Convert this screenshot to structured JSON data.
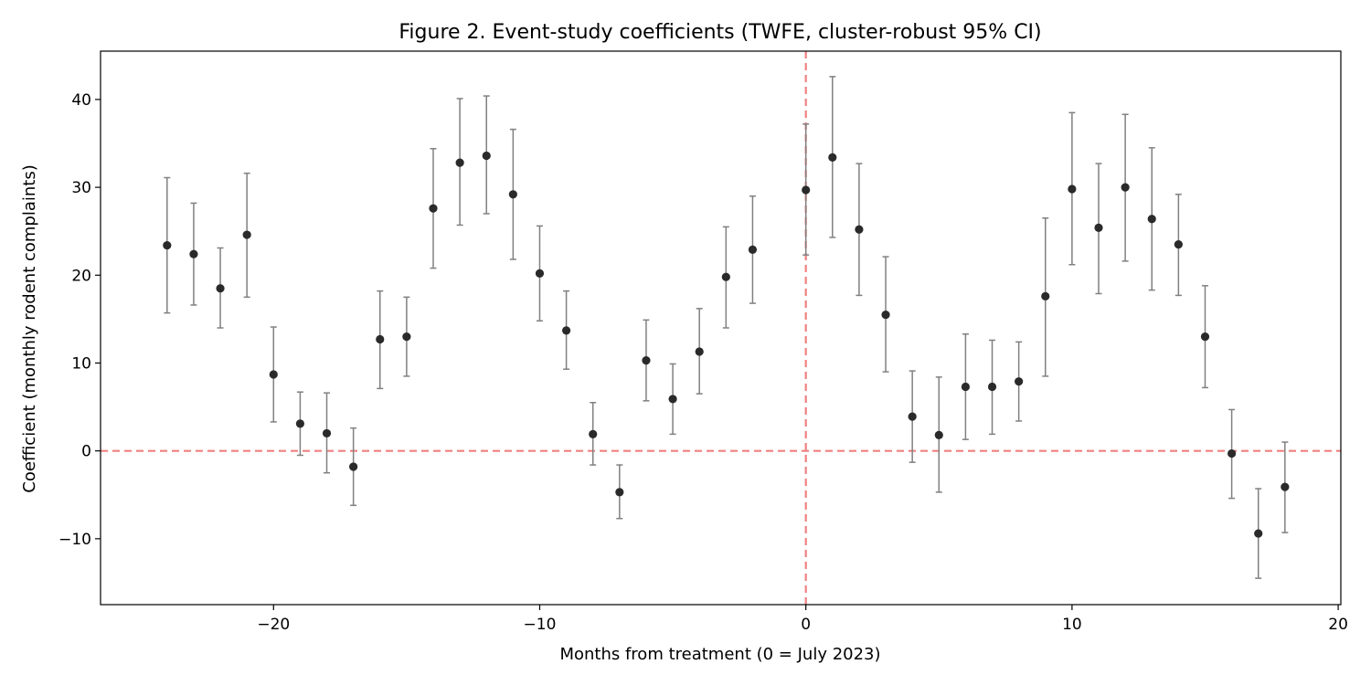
{
  "chart_data": {
    "type": "scatter",
    "title": "Figure 2. Event-study coefficients (TWFE, cluster-robust 95% CI)",
    "xlabel": "Months from treatment (0 = July 2023)",
    "ylabel": "Coefficient (monthly rodent complaints)",
    "xlim": [
      -26.5,
      20.1
    ],
    "ylim": [
      -17.5,
      45.5
    ],
    "xticks": [
      -20,
      -10,
      0,
      10,
      20
    ],
    "xtick_labels": [
      "−20",
      "−10",
      "0",
      "10",
      "20"
    ],
    "yticks": [
      -10,
      0,
      10,
      20,
      30,
      40
    ],
    "ytick_labels": [
      "−10",
      "0",
      "10",
      "20",
      "30",
      "40"
    ],
    "grid": false,
    "reference_lines": [
      {
        "axis": "x",
        "value": 0,
        "style": "dashed",
        "color": "#f08080"
      },
      {
        "axis": "y",
        "value": 0,
        "style": "dashed",
        "color": "#f08080"
      }
    ],
    "marker_color": "#2a2a2a",
    "errorbar_color": "#808080",
    "points": [
      {
        "x": -24,
        "y": 23.4,
        "lo": 15.7,
        "hi": 31.1
      },
      {
        "x": -23,
        "y": 22.4,
        "lo": 16.6,
        "hi": 28.2
      },
      {
        "x": -22,
        "y": 18.5,
        "lo": 14.0,
        "hi": 23.1
      },
      {
        "x": -21,
        "y": 24.6,
        "lo": 17.5,
        "hi": 31.6
      },
      {
        "x": -20,
        "y": 8.7,
        "lo": 3.3,
        "hi": 14.1
      },
      {
        "x": -19,
        "y": 3.1,
        "lo": -0.5,
        "hi": 6.7
      },
      {
        "x": -18,
        "y": 2.0,
        "lo": -2.5,
        "hi": 6.6
      },
      {
        "x": -17,
        "y": -1.8,
        "lo": -6.2,
        "hi": 2.6
      },
      {
        "x": -16,
        "y": 12.7,
        "lo": 7.1,
        "hi": 18.2
      },
      {
        "x": -15,
        "y": 13.0,
        "lo": 8.5,
        "hi": 17.5
      },
      {
        "x": -14,
        "y": 27.6,
        "lo": 20.8,
        "hi": 34.4
      },
      {
        "x": -13,
        "y": 32.8,
        "lo": 25.7,
        "hi": 40.1
      },
      {
        "x": -12,
        "y": 33.6,
        "lo": 27.0,
        "hi": 40.4
      },
      {
        "x": -11,
        "y": 29.2,
        "lo": 21.8,
        "hi": 36.6
      },
      {
        "x": -10,
        "y": 20.2,
        "lo": 14.8,
        "hi": 25.6
      },
      {
        "x": -9,
        "y": 13.7,
        "lo": 9.3,
        "hi": 18.2
      },
      {
        "x": -8,
        "y": 1.9,
        "lo": -1.6,
        "hi": 5.5
      },
      {
        "x": -7,
        "y": -4.7,
        "lo": -7.7,
        "hi": -1.6
      },
      {
        "x": -6,
        "y": 10.3,
        "lo": 5.7,
        "hi": 14.9
      },
      {
        "x": -5,
        "y": 5.9,
        "lo": 1.9,
        "hi": 9.9
      },
      {
        "x": -4,
        "y": 11.3,
        "lo": 6.5,
        "hi": 16.2
      },
      {
        "x": -3,
        "y": 19.8,
        "lo": 14.0,
        "hi": 25.5
      },
      {
        "x": -2,
        "y": 22.9,
        "lo": 16.8,
        "hi": 29.0
      },
      {
        "x": 0,
        "y": 29.7,
        "lo": 22.3,
        "hi": 37.2
      },
      {
        "x": 1,
        "y": 33.4,
        "lo": 24.3,
        "hi": 42.6
      },
      {
        "x": 2,
        "y": 25.2,
        "lo": 17.7,
        "hi": 32.7
      },
      {
        "x": 3,
        "y": 15.5,
        "lo": 9.0,
        "hi": 22.1
      },
      {
        "x": 4,
        "y": 3.9,
        "lo": -1.3,
        "hi": 9.1
      },
      {
        "x": 5,
        "y": 1.8,
        "lo": -4.7,
        "hi": 8.4
      },
      {
        "x": 6,
        "y": 7.3,
        "lo": 1.3,
        "hi": 13.3
      },
      {
        "x": 7,
        "y": 7.3,
        "lo": 1.9,
        "hi": 12.6
      },
      {
        "x": 8,
        "y": 7.9,
        "lo": 3.4,
        "hi": 12.4
      },
      {
        "x": 9,
        "y": 17.6,
        "lo": 8.5,
        "hi": 26.5
      },
      {
        "x": 10,
        "y": 29.8,
        "lo": 21.2,
        "hi": 38.5
      },
      {
        "x": 11,
        "y": 25.4,
        "lo": 17.9,
        "hi": 32.7
      },
      {
        "x": 12,
        "y": 30.0,
        "lo": 21.6,
        "hi": 38.3
      },
      {
        "x": 13,
        "y": 26.4,
        "lo": 18.3,
        "hi": 34.5
      },
      {
        "x": 14,
        "y": 23.5,
        "lo": 17.7,
        "hi": 29.2
      },
      {
        "x": 15,
        "y": 13.0,
        "lo": 7.2,
        "hi": 18.8
      },
      {
        "x": 16,
        "y": -0.3,
        "lo": -5.4,
        "hi": 4.7
      },
      {
        "x": 17,
        "y": -9.4,
        "lo": -14.5,
        "hi": -4.3
      },
      {
        "x": 18,
        "y": -4.1,
        "lo": -9.3,
        "hi": 1.0
      }
    ]
  }
}
